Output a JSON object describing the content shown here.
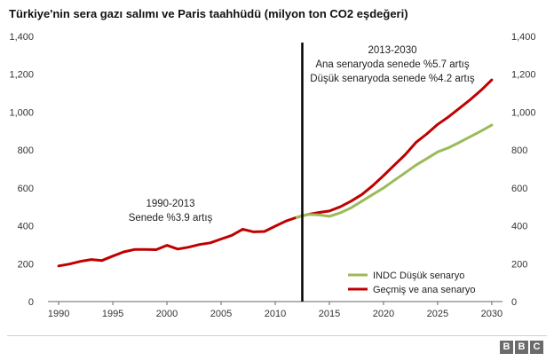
{
  "title": "Türkiye'nin sera gazı salımı ve Paris taahhüdü (milyon ton CO2 eşdeğeri)",
  "chart_data": {
    "type": "line",
    "title": "Türkiye'nin sera gazı salımı ve Paris taahhüdü (milyon ton CO2 eşdeğeri)",
    "xlabel": "",
    "ylabel": "",
    "xlim": [
      1989.5,
      2030.5
    ],
    "ylim": [
      0,
      1400
    ],
    "x_ticks": [
      1990,
      1995,
      2000,
      2005,
      2010,
      2015,
      2020,
      2025,
      2030
    ],
    "y_ticks": [
      0,
      200,
      400,
      600,
      800,
      1000,
      1200,
      1400
    ],
    "y_tick_labels": [
      "0",
      "200",
      "400",
      "600",
      "800",
      "1,000",
      "1,200",
      "1,400"
    ],
    "y_axis": "both sides",
    "grid": false,
    "legend_position": "bottom-right",
    "marker_line_x": 2012.5,
    "series": [
      {
        "name": "Geçmiş ve ana senaryo",
        "color": "#c00000",
        "x": [
          1990,
          1991,
          1992,
          1993,
          1994,
          1995,
          1996,
          1997,
          1998,
          1999,
          2000,
          2001,
          2002,
          2003,
          2004,
          2005,
          2006,
          2007,
          2008,
          2009,
          2010,
          2011,
          2012,
          2013,
          2014,
          2015,
          2016,
          2017,
          2018,
          2019,
          2020,
          2021,
          2022,
          2023,
          2024,
          2025,
          2026,
          2027,
          2028,
          2029,
          2030
        ],
        "values": [
          188,
          198,
          212,
          222,
          217,
          240,
          262,
          275,
          275,
          274,
          297,
          277,
          287,
          301,
          310,
          330,
          350,
          382,
          368,
          370,
          398,
          425,
          445,
          460,
          470,
          478,
          500,
          530,
          565,
          612,
          665,
          720,
          775,
          840,
          885,
          935,
          975,
          1020,
          1065,
          1115,
          1170
        ]
      },
      {
        "name": "INDC Düşük senaryo",
        "color": "#9bbb59",
        "x": [
          2012,
          2013,
          2014,
          2015,
          2016,
          2017,
          2018,
          2019,
          2020,
          2021,
          2022,
          2023,
          2024,
          2025,
          2026,
          2027,
          2028,
          2029,
          2030
        ],
        "values": [
          445,
          460,
          458,
          450,
          468,
          495,
          530,
          565,
          600,
          640,
          680,
          720,
          755,
          790,
          812,
          840,
          870,
          900,
          932
        ]
      }
    ],
    "annotations": [
      {
        "lines": [
          "1990-2013",
          "Senede %3.9 artış"
        ]
      },
      {
        "lines": [
          "2013-2030",
          "Ana senaryoda senede %5.7 artış",
          "Düşük senaryoda senede %4.2 artış"
        ]
      }
    ]
  },
  "logo": [
    "B",
    "B",
    "C"
  ]
}
